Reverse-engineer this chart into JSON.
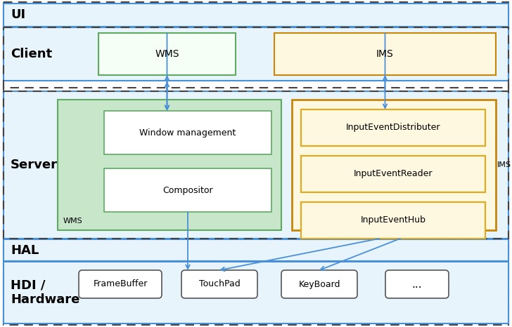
{
  "bg_color": "#ffffff",
  "light_blue_bg": "#e8f4fb",
  "green_bg": "#c8e6c9",
  "green_border": "#5daa60",
  "yellow_bg": "#fff8e1",
  "yellow_border": "#e6a817",
  "yellow_border_dark": "#c8860a",
  "white_bg": "#ffffff",
  "arrow_color": "#4a90d9",
  "dashed_color": "#444444",
  "blue_border": "#4a90d9",
  "gray_border": "#888888",
  "ui_label": "UI",
  "client_label": "Client",
  "server_label": "Server",
  "hal_label": "HAL",
  "hdi_label": "HDI /\nHardware",
  "wms_client_label": "WMS",
  "ims_client_label": "IMS",
  "wms_server_label": "WMS",
  "ims_server_label": "IMS",
  "window_mgmt_label": "Window management",
  "compositor_label": "Compositor",
  "ied_label": "InputEventDistributer",
  "ier_label": "InputEventReader",
  "ieh_label": "InputEventHub",
  "framebuffer_label": "FrameBuffer",
  "touchpad_label": "TouchPad",
  "keyboard_label": "KeyBoard",
  "dots_label": "..."
}
